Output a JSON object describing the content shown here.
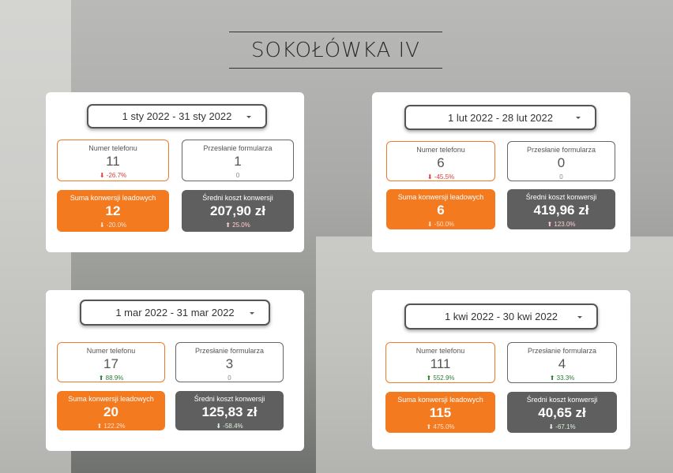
{
  "title": "SOKOŁÓWKA IV",
  "panels": [
    {
      "date_range": "1 sty 2022 - 31 sty 2022",
      "cards": [
        {
          "label": "Numer telefonu",
          "value": "11",
          "delta": "⬇ -26.7%",
          "delta_color": "#e53935"
        },
        {
          "label": "Przesłanie formularza",
          "value": "1",
          "delta": "0",
          "delta_color": "#888888"
        },
        {
          "label": "Suma konwersji leadowych",
          "value": "12",
          "delta": "⬇ -20.0%",
          "delta_color": "#ffe0cc"
        },
        {
          "label": "Średni koszt konwersji",
          "value": "207,90 zł",
          "delta": "⬆ 25.0%",
          "delta_color": "#ffcdd2"
        }
      ]
    },
    {
      "date_range": "1 lut 2022 - 28 lut 2022",
      "cards": [
        {
          "label": "Numer telefonu",
          "value": "6",
          "delta": "⬇ -45.5%",
          "delta_color": "#e53935"
        },
        {
          "label": "Przesłanie formularza",
          "value": "0",
          "delta": "0",
          "delta_color": "#888888"
        },
        {
          "label": "Suma konwersji leadowych",
          "value": "6",
          "delta": "⬇ -50.0%",
          "delta_color": "#ffe0cc"
        },
        {
          "label": "Średni koszt konwersji",
          "value": "419,96 zł",
          "delta": "⬆ 123.0%",
          "delta_color": "#ffcdd2"
        }
      ]
    },
    {
      "date_range": "1 mar 2022 - 31 mar 2022",
      "cards": [
        {
          "label": "Numer telefonu",
          "value": "17",
          "delta": "⬆ 88.9%",
          "delta_color": "#2e7d32"
        },
        {
          "label": "Przesłanie formularza",
          "value": "3",
          "delta": "0",
          "delta_color": "#888888"
        },
        {
          "label": "Suma konwersji leadowych",
          "value": "20",
          "delta": "⬆ 122.2%",
          "delta_color": "#ffe0cc"
        },
        {
          "label": "Średni koszt konwersji",
          "value": "125,83 zł",
          "delta": "⬇ -58.4%",
          "delta_color": "#e0f2e0"
        }
      ]
    },
    {
      "date_range": "1 kwi 2022 - 30 kwi 2022",
      "cards": [
        {
          "label": "Numer telefonu",
          "value": "111",
          "delta": "⬆ 552.9%",
          "delta_color": "#2e7d32"
        },
        {
          "label": "Przesłanie formularza",
          "value": "4",
          "delta": "⬆ 33.3%",
          "delta_color": "#2e7d32"
        },
        {
          "label": "Suma konwersji leadowych",
          "value": "115",
          "delta": "⬆ 475.0%",
          "delta_color": "#ffe0cc"
        },
        {
          "label": "Średni koszt konwersji",
          "value": "40,65 zł",
          "delta": "⬇ -67.1%",
          "delta_color": "#e0f2e0"
        }
      ]
    }
  ]
}
